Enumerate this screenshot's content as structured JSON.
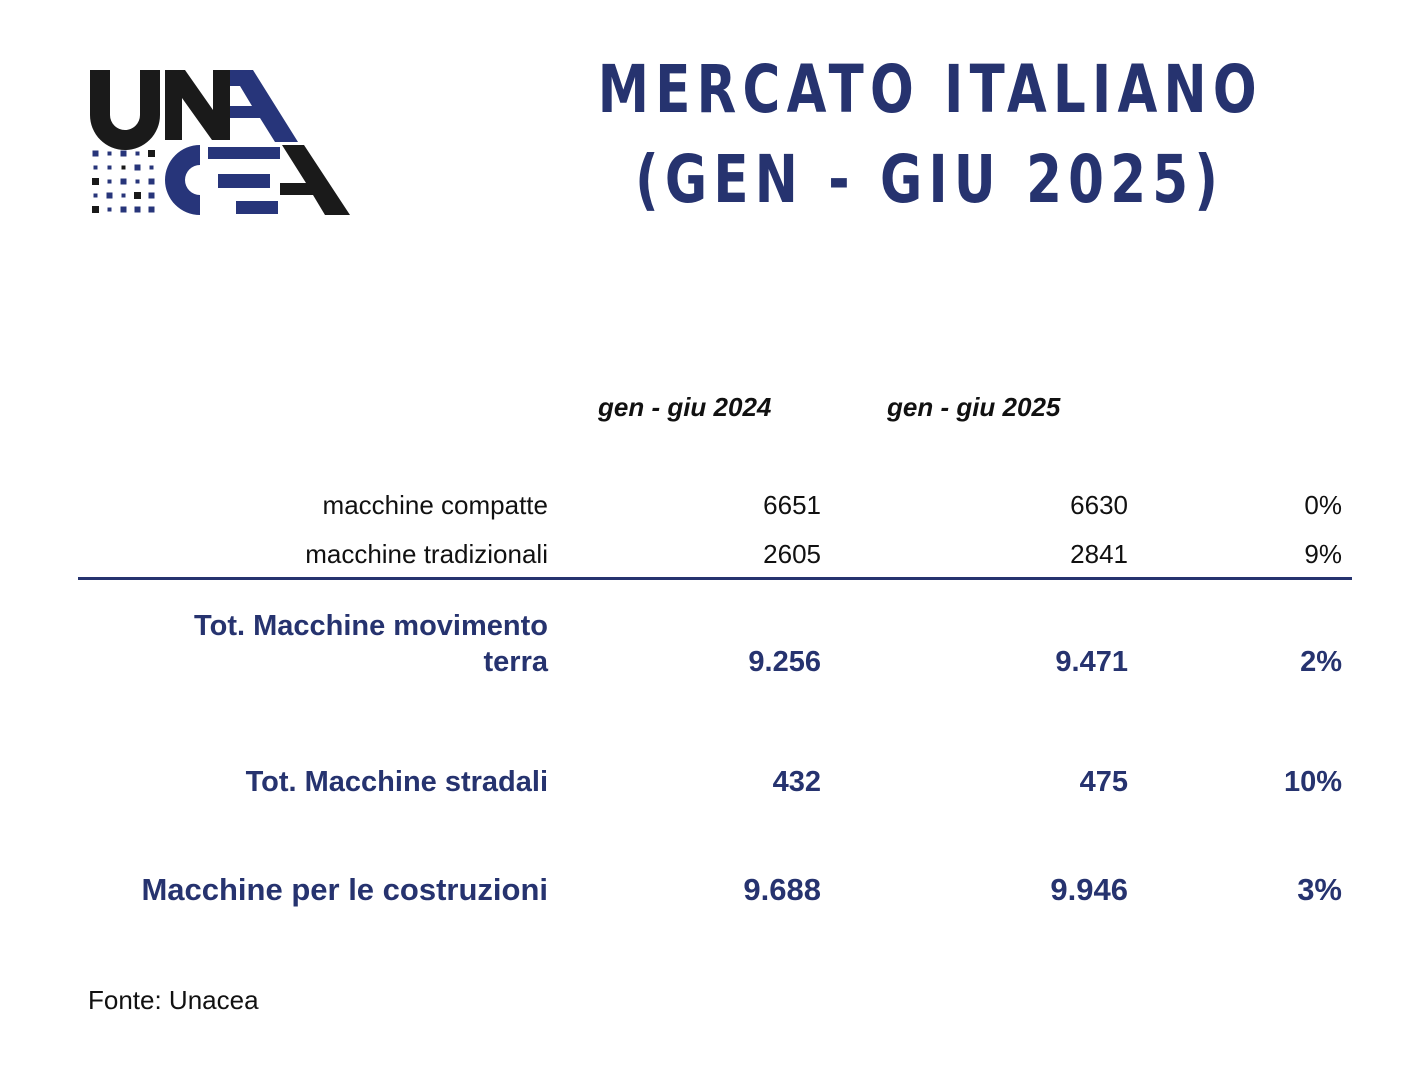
{
  "logo": {
    "text": "UNACEA",
    "colors": {
      "blue": "#27357a",
      "black": "#1a1a1a"
    }
  },
  "title": {
    "line1": "MERCATO ITALIANO",
    "line2": "(GEN - GIU 2025)",
    "color": "#26336f"
  },
  "table": {
    "headers": [
      "gen - giu 2024",
      "gen - giu 2025"
    ],
    "rows": [
      {
        "label": "macchine compatte",
        "v2024": "6651",
        "v2025": "6630",
        "change": "0%"
      },
      {
        "label": "macchine tradizionali",
        "v2024": "2605",
        "v2025": "2841",
        "change": "9%"
      }
    ],
    "totals": [
      {
        "label_line1": "Tot. Macchine movimento",
        "label_line2": "terra",
        "v2024": "9.256",
        "v2025": "9.471",
        "change": "2%"
      },
      {
        "label": "Tot. Macchine stradali",
        "v2024": "432",
        "v2025": "475",
        "change": "10%"
      },
      {
        "label": "Macchine per le costruzioni",
        "v2024": "9.688",
        "v2025": "9.946",
        "change": "3%"
      }
    ]
  },
  "source": "Fonte: Unacea"
}
